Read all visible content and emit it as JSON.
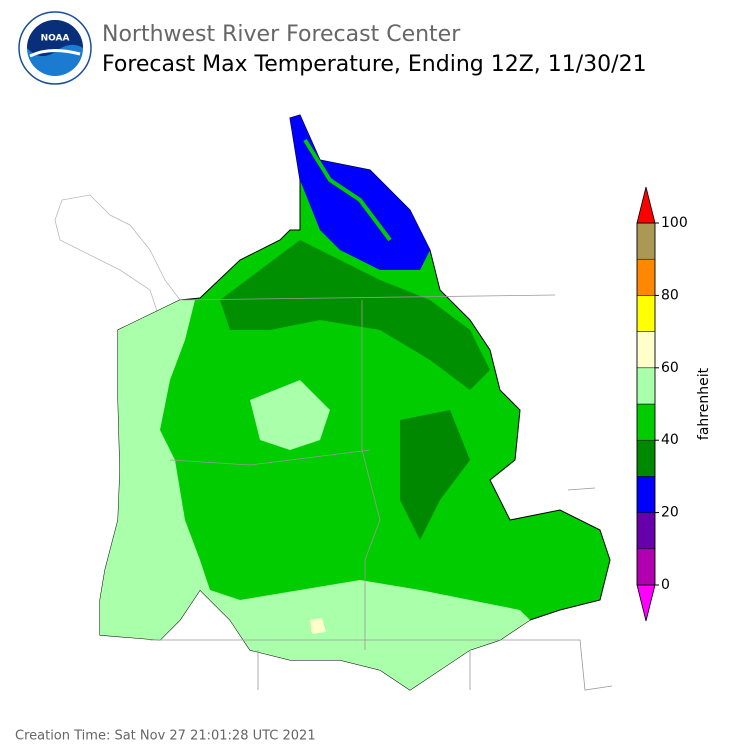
{
  "header": {
    "agency": "Northwest River Forecast Center",
    "title": "Forecast Max Temperature, Ending 12Z, 11/30/21"
  },
  "colorbar": {
    "label": "fahrenheit",
    "lim": [
      0,
      100
    ],
    "ticks": [
      0,
      20,
      40,
      60,
      80,
      100
    ],
    "colors": [
      "#b000b0",
      "#6600aa",
      "#0000ff",
      "#008800",
      "#00cc00",
      "#aaffaa",
      "#ffffcc",
      "#ffff00",
      "#ff8800",
      "#aa9955"
    ],
    "under_color": "#ff00ff",
    "over_color": "#ff0000"
  },
  "footer": {
    "creation_time": "Creation Time: Sat Nov 27 21:01:28 UTC 2021"
  }
}
